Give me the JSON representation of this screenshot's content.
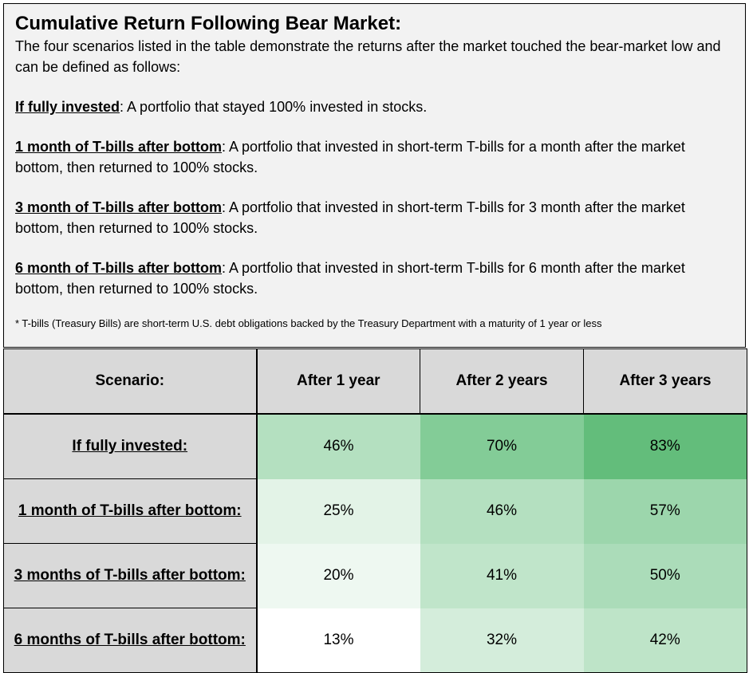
{
  "header": {
    "title": "Cumulative Return Following Bear Market:",
    "intro": "The four scenarios listed in the table demonstrate the returns after the market touched the bear-market low and can be defined as follows:",
    "definitions": [
      {
        "term": "If fully invested",
        "text": ": A portfolio that stayed 100% invested in stocks."
      },
      {
        "term": "1 month of T-bills after bottom",
        "text": ": A portfolio that invested in short-term T-bills for a month after the market bottom, then returned to 100% stocks."
      },
      {
        "term": "3 month of T-bills after bottom",
        "text": ": A portfolio that invested in short-term T-bills for 3 month after the market bottom, then returned to 100% stocks."
      },
      {
        "term": "6 month of T-bills after bottom",
        "text": ": A portfolio that invested in short-term T-bills for 6 month after the market bottom, then returned to 100% stocks."
      }
    ],
    "footnote": "* T-bills (Treasury Bills) are short-term U.S. debt obligations backed by the Treasury Department with a maturity of 1 year or less"
  },
  "table": {
    "columns": [
      "Scenario:",
      "After 1 year",
      "After 2 years",
      "After 3 years"
    ],
    "rows": [
      {
        "label": "If fully invested:",
        "values": [
          "46%",
          "70%",
          "83%"
        ],
        "shades": [
          "#b4e0c0",
          "#83cc97",
          "#63bd7b"
        ]
      },
      {
        "label": "1 month of T-bills after bottom:",
        "values": [
          "25%",
          "46%",
          "57%"
        ],
        "shades": [
          "#e3f3e7",
          "#b4e0c0",
          "#9cd6ac"
        ]
      },
      {
        "label": "3 months of T-bills after bottom:",
        "values": [
          "20%",
          "41%",
          "50%"
        ],
        "shades": [
          "#eef8f1",
          "#c0e5ca",
          "#abdcb9"
        ]
      },
      {
        "label": "6 months of T-bills after bottom:",
        "values": [
          "13%",
          "32%",
          "42%"
        ],
        "shades": [
          "#ffffff",
          "#d4eddb",
          "#bee4c8"
        ]
      }
    ]
  }
}
